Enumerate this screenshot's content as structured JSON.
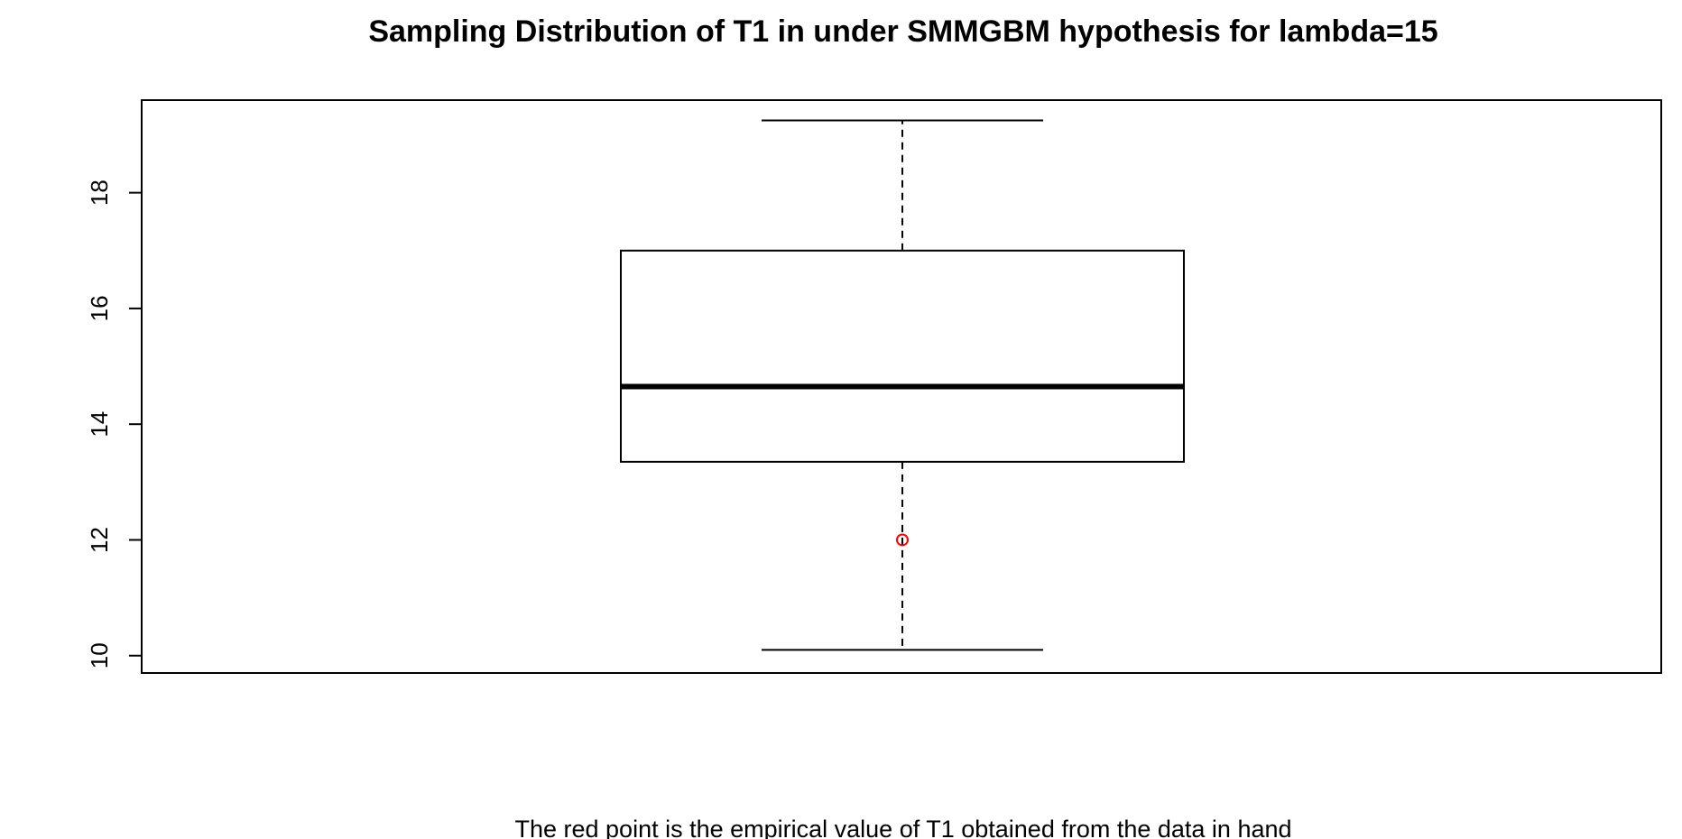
{
  "chart_data": {
    "type": "boxplot",
    "title": "Sampling Distribution of T1 in under SMMGBM hypothesis for lambda=15",
    "xlabel": "The red point is the empirical value of T1 obtained from the data in hand",
    "ylabel": "",
    "ylim": [
      9.7,
      19.6
    ],
    "y_ticks": [
      10,
      12,
      14,
      16,
      18
    ],
    "y_tick_labels": [
      "10",
      "12",
      "14",
      "16",
      "18"
    ],
    "grid": false,
    "legend": false,
    "box": {
      "whisker_low": 10.1,
      "q1": 13.35,
      "median": 14.65,
      "q3": 17.0,
      "whisker_high": 19.25,
      "line_color": "#000000"
    },
    "empirical_point": {
      "value": 12.0,
      "color": "#ff0000"
    }
  }
}
